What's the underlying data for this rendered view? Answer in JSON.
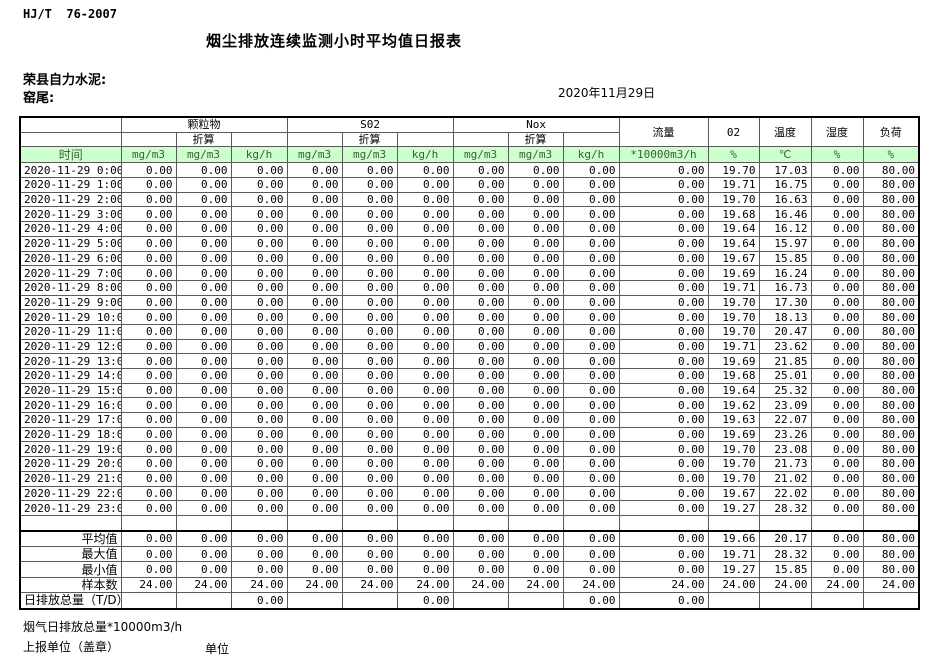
{
  "meta": {
    "standard": "HJ/T  76-2007",
    "title": "烟尘排放连续监测小时平均值日报表",
    "company": "荣县自力水泥:",
    "station": "窑尾:",
    "date": "2020年11月29日"
  },
  "table": {
    "groups": [
      {
        "label": "颗粒物",
        "sub": "折算"
      },
      {
        "label": "S02",
        "sub": "折算"
      },
      {
        "label": "Nox",
        "sub": "折算"
      }
    ],
    "singles": [
      "流量",
      "02",
      "温度",
      "湿度",
      "负荷"
    ],
    "units": [
      "时间",
      "mg/m3",
      "mg/m3",
      "kg/h",
      "mg/m3",
      "mg/m3",
      "kg/h",
      "mg/m3",
      "mg/m3",
      "kg/h",
      "*10000m3/h",
      "%",
      "℃",
      "%",
      "%"
    ],
    "header_colors": {
      "units_bg": "#ccffcc",
      "units_text": "#3b5e3b"
    },
    "rows": [
      [
        "2020-11-29 0:00",
        "0.00",
        "0.00",
        "0.00",
        "0.00",
        "0.00",
        "0.00",
        "0.00",
        "0.00",
        "0.00",
        "0.00",
        "19.70",
        "17.03",
        "0.00",
        "80.00"
      ],
      [
        "2020-11-29 1:00",
        "0.00",
        "0.00",
        "0.00",
        "0.00",
        "0.00",
        "0.00",
        "0.00",
        "0.00",
        "0.00",
        "0.00",
        "19.71",
        "16.75",
        "0.00",
        "80.00"
      ],
      [
        "2020-11-29 2:00",
        "0.00",
        "0.00",
        "0.00",
        "0.00",
        "0.00",
        "0.00",
        "0.00",
        "0.00",
        "0.00",
        "0.00",
        "19.70",
        "16.63",
        "0.00",
        "80.00"
      ],
      [
        "2020-11-29 3:00",
        "0.00",
        "0.00",
        "0.00",
        "0.00",
        "0.00",
        "0.00",
        "0.00",
        "0.00",
        "0.00",
        "0.00",
        "19.68",
        "16.46",
        "0.00",
        "80.00"
      ],
      [
        "2020-11-29 4:00",
        "0.00",
        "0.00",
        "0.00",
        "0.00",
        "0.00",
        "0.00",
        "0.00",
        "0.00",
        "0.00",
        "0.00",
        "19.64",
        "16.12",
        "0.00",
        "80.00"
      ],
      [
        "2020-11-29 5:00",
        "0.00",
        "0.00",
        "0.00",
        "0.00",
        "0.00",
        "0.00",
        "0.00",
        "0.00",
        "0.00",
        "0.00",
        "19.64",
        "15.97",
        "0.00",
        "80.00"
      ],
      [
        "2020-11-29 6:00",
        "0.00",
        "0.00",
        "0.00",
        "0.00",
        "0.00",
        "0.00",
        "0.00",
        "0.00",
        "0.00",
        "0.00",
        "19.67",
        "15.85",
        "0.00",
        "80.00"
      ],
      [
        "2020-11-29 7:00",
        "0.00",
        "0.00",
        "0.00",
        "0.00",
        "0.00",
        "0.00",
        "0.00",
        "0.00",
        "0.00",
        "0.00",
        "19.69",
        "16.24",
        "0.00",
        "80.00"
      ],
      [
        "2020-11-29 8:00",
        "0.00",
        "0.00",
        "0.00",
        "0.00",
        "0.00",
        "0.00",
        "0.00",
        "0.00",
        "0.00",
        "0.00",
        "19.71",
        "16.73",
        "0.00",
        "80.00"
      ],
      [
        "2020-11-29 9:00",
        "0.00",
        "0.00",
        "0.00",
        "0.00",
        "0.00",
        "0.00",
        "0.00",
        "0.00",
        "0.00",
        "0.00",
        "19.70",
        "17.30",
        "0.00",
        "80.00"
      ],
      [
        "2020-11-29 10:00",
        "0.00",
        "0.00",
        "0.00",
        "0.00",
        "0.00",
        "0.00",
        "0.00",
        "0.00",
        "0.00",
        "0.00",
        "19.70",
        "18.13",
        "0.00",
        "80.00"
      ],
      [
        "2020-11-29 11:00",
        "0.00",
        "0.00",
        "0.00",
        "0.00",
        "0.00",
        "0.00",
        "0.00",
        "0.00",
        "0.00",
        "0.00",
        "19.70",
        "20.47",
        "0.00",
        "80.00"
      ],
      [
        "2020-11-29 12:00",
        "0.00",
        "0.00",
        "0.00",
        "0.00",
        "0.00",
        "0.00",
        "0.00",
        "0.00",
        "0.00",
        "0.00",
        "19.71",
        "23.62",
        "0.00",
        "80.00"
      ],
      [
        "2020-11-29 13:00",
        "0.00",
        "0.00",
        "0.00",
        "0.00",
        "0.00",
        "0.00",
        "0.00",
        "0.00",
        "0.00",
        "0.00",
        "19.69",
        "21.85",
        "0.00",
        "80.00"
      ],
      [
        "2020-11-29 14:00",
        "0.00",
        "0.00",
        "0.00",
        "0.00",
        "0.00",
        "0.00",
        "0.00",
        "0.00",
        "0.00",
        "0.00",
        "19.68",
        "25.01",
        "0.00",
        "80.00"
      ],
      [
        "2020-11-29 15:00",
        "0.00",
        "0.00",
        "0.00",
        "0.00",
        "0.00",
        "0.00",
        "0.00",
        "0.00",
        "0.00",
        "0.00",
        "19.64",
        "25.32",
        "0.00",
        "80.00"
      ],
      [
        "2020-11-29 16:00",
        "0.00",
        "0.00",
        "0.00",
        "0.00",
        "0.00",
        "0.00",
        "0.00",
        "0.00",
        "0.00",
        "0.00",
        "19.62",
        "23.09",
        "0.00",
        "80.00"
      ],
      [
        "2020-11-29 17:00",
        "0.00",
        "0.00",
        "0.00",
        "0.00",
        "0.00",
        "0.00",
        "0.00",
        "0.00",
        "0.00",
        "0.00",
        "19.63",
        "22.07",
        "0.00",
        "80.00"
      ],
      [
        "2020-11-29 18:00",
        "0.00",
        "0.00",
        "0.00",
        "0.00",
        "0.00",
        "0.00",
        "0.00",
        "0.00",
        "0.00",
        "0.00",
        "19.69",
        "23.26",
        "0.00",
        "80.00"
      ],
      [
        "2020-11-29 19:00",
        "0.00",
        "0.00",
        "0.00",
        "0.00",
        "0.00",
        "0.00",
        "0.00",
        "0.00",
        "0.00",
        "0.00",
        "19.70",
        "23.08",
        "0.00",
        "80.00"
      ],
      [
        "2020-11-29 20:00",
        "0.00",
        "0.00",
        "0.00",
        "0.00",
        "0.00",
        "0.00",
        "0.00",
        "0.00",
        "0.00",
        "0.00",
        "19.70",
        "21.73",
        "0.00",
        "80.00"
      ],
      [
        "2020-11-29 21:00",
        "0.00",
        "0.00",
        "0.00",
        "0.00",
        "0.00",
        "0.00",
        "0.00",
        "0.00",
        "0.00",
        "0.00",
        "19.70",
        "21.02",
        "0.00",
        "80.00"
      ],
      [
        "2020-11-29 22:00",
        "0.00",
        "0.00",
        "0.00",
        "0.00",
        "0.00",
        "0.00",
        "0.00",
        "0.00",
        "0.00",
        "0.00",
        "19.67",
        "22.02",
        "0.00",
        "80.00"
      ],
      [
        "2020-11-29 23:00",
        "0.00",
        "0.00",
        "0.00",
        "0.00",
        "0.00",
        "0.00",
        "0.00",
        "0.00",
        "0.00",
        "0.00",
        "19.27",
        "28.32",
        "0.00",
        "80.00"
      ]
    ],
    "summary": [
      {
        "label": "平均值",
        "align": "right",
        "values": [
          "0.00",
          "0.00",
          "0.00",
          "0.00",
          "0.00",
          "0.00",
          "0.00",
          "0.00",
          "0.00",
          "0.00",
          "19.66",
          "20.17",
          "0.00",
          "80.00"
        ]
      },
      {
        "label": "最大值",
        "align": "right",
        "values": [
          "0.00",
          "0.00",
          "0.00",
          "0.00",
          "0.00",
          "0.00",
          "0.00",
          "0.00",
          "0.00",
          "0.00",
          "19.71",
          "28.32",
          "0.00",
          "80.00"
        ]
      },
      {
        "label": "最小值",
        "align": "right",
        "values": [
          "0.00",
          "0.00",
          "0.00",
          "0.00",
          "0.00",
          "0.00",
          "0.00",
          "0.00",
          "0.00",
          "0.00",
          "19.27",
          "15.85",
          "0.00",
          "80.00"
        ]
      },
      {
        "label": "样本数",
        "align": "right",
        "values": [
          "24.00",
          "24.00",
          "24.00",
          "24.00",
          "24.00",
          "24.00",
          "24.00",
          "24.00",
          "24.00",
          "24.00",
          "24.00",
          "24.00",
          "24.00",
          "24.00"
        ]
      },
      {
        "label": "日排放总量（T/D）",
        "align": "left",
        "values": [
          "",
          "",
          "0.00",
          "",
          "",
          "0.00",
          "",
          "",
          "0.00",
          "0.00",
          "",
          "",
          "",
          ""
        ]
      }
    ]
  },
  "footer": {
    "note": "烟气日排放总量*10000m3/h",
    "report_unit": "上报单位（盖章）",
    "unit": "单位"
  }
}
